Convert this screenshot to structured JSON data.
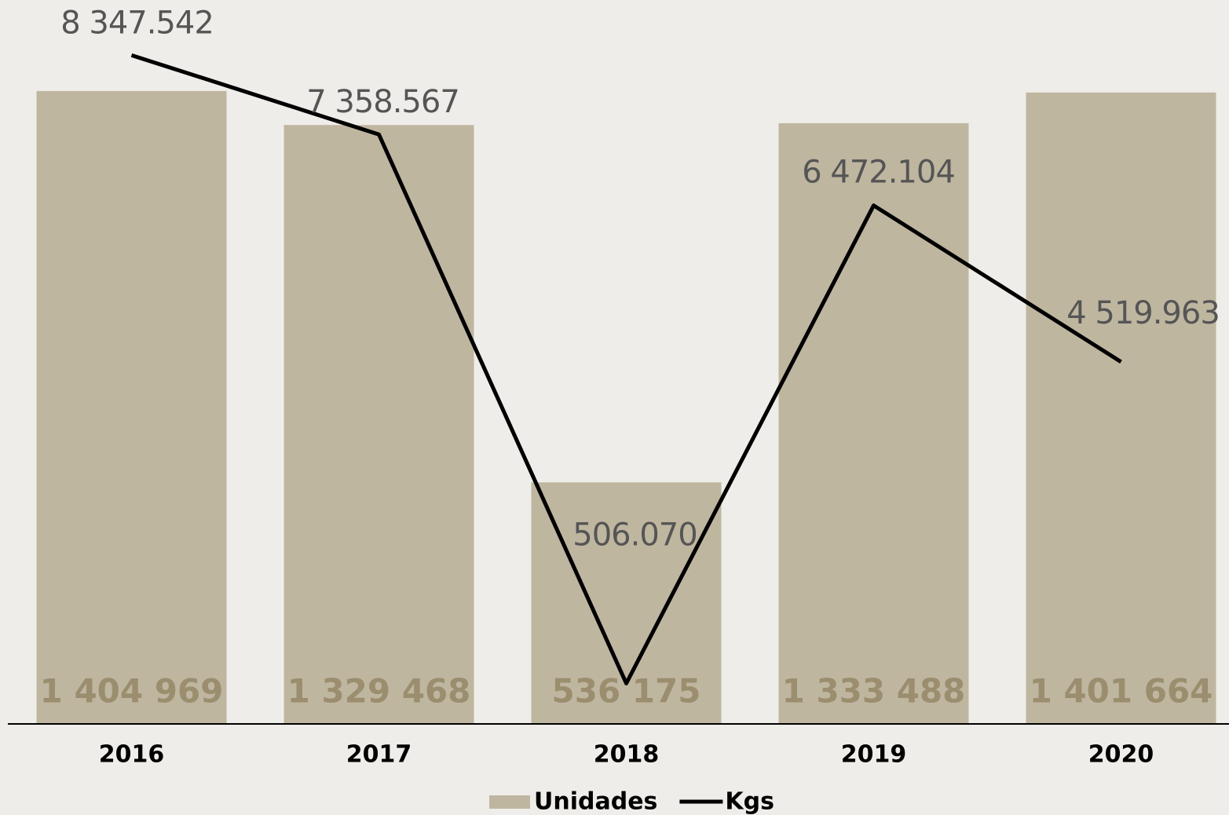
{
  "chart_data": {
    "type": "bar_line",
    "categories": [
      "2016",
      "2017",
      "2018",
      "2019",
      "2020"
    ],
    "series": [
      {
        "name": "Unidades",
        "type": "bar",
        "color": "#bfb6a0",
        "label_color": "#9b8e6f",
        "values": [
          1404969,
          1329468,
          536175,
          1333488,
          1401664
        ],
        "value_labels": [
          "1 404 969",
          "1 329 468",
          "536 175",
          "1 333 488",
          "1 401 664"
        ]
      },
      {
        "name": "Kgs",
        "type": "line",
        "axis": "y2",
        "color": "#000000",
        "label_color": "#555555",
        "values": [
          8347542,
          7358567,
          506070,
          6472104,
          4519963
        ],
        "value_labels": [
          "8 347.542",
          "7 358.567",
          "506.070",
          "6 472.104",
          "4 519.963"
        ]
      }
    ],
    "ylim": [
      0,
      1607000
    ],
    "y2lim": [
      0,
      9037000
    ],
    "legend": "bottom"
  }
}
